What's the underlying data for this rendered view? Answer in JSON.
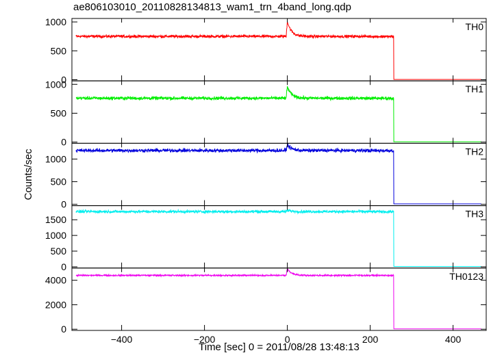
{
  "title": "ae806103010_20110828134813_wam1_trn_4band_long.qdp",
  "chart_data": {
    "type": "line",
    "xlabel": "Time [sec] 0 = 2011/08/28 13:48:13",
    "ylabel": "Counts/sec",
    "xlim": [
      -520,
      480
    ],
    "x_ticks": [
      -400,
      -200,
      0,
      200,
      400
    ],
    "x_tick_labels": [
      "−400",
      "−200",
      "0",
      "200",
      "400"
    ],
    "x_start": -510,
    "x_drop": 257,
    "x_end": 468,
    "bin_sec": 0.5,
    "panels": [
      {
        "name": "TH0",
        "color": "#ff0000",
        "ylim": [
          -20,
          1060
        ],
        "yticks": [
          0,
          500,
          1000
        ],
        "ytick_labels": [
          "0",
          "500",
          "1000"
        ],
        "baseline": 750,
        "noise": 22,
        "burst_peak": 1010,
        "after_drop": 5
      },
      {
        "name": "TH1",
        "color": "#00ee00",
        "ylim": [
          -20,
          1060
        ],
        "yticks": [
          0,
          500,
          1000
        ],
        "ytick_labels": [
          "0",
          "500",
          "1000"
        ],
        "baseline": 760,
        "noise": 25,
        "burst_peak": 960,
        "after_drop": 5
      },
      {
        "name": "TH2",
        "color": "#0000dd",
        "ylim": [
          -30,
          1350
        ],
        "yticks": [
          0,
          500,
          1000
        ],
        "ytick_labels": [
          "0",
          "500",
          "1000"
        ],
        "baseline": 1190,
        "noise": 35,
        "burst_peak": 1320,
        "after_drop": 10
      },
      {
        "name": "TH3",
        "color": "#00eeee",
        "ylim": [
          -40,
          1950
        ],
        "yticks": [
          0,
          500,
          1000,
          1500
        ],
        "ytick_labels": [
          "0",
          "500",
          "1000",
          "1500"
        ],
        "baseline": 1760,
        "noise": 40,
        "burst_peak": 1800,
        "after_drop": 10
      },
      {
        "name": "TH0123",
        "color": "#ee00ee",
        "ylim": [
          -100,
          5000
        ],
        "yticks": [
          0,
          2000,
          4000
        ],
        "ytick_labels": [
          "0",
          "2000",
          "4000"
        ],
        "baseline": 4400,
        "noise": 55,
        "burst_peak": 4950,
        "after_drop": 30
      }
    ]
  }
}
